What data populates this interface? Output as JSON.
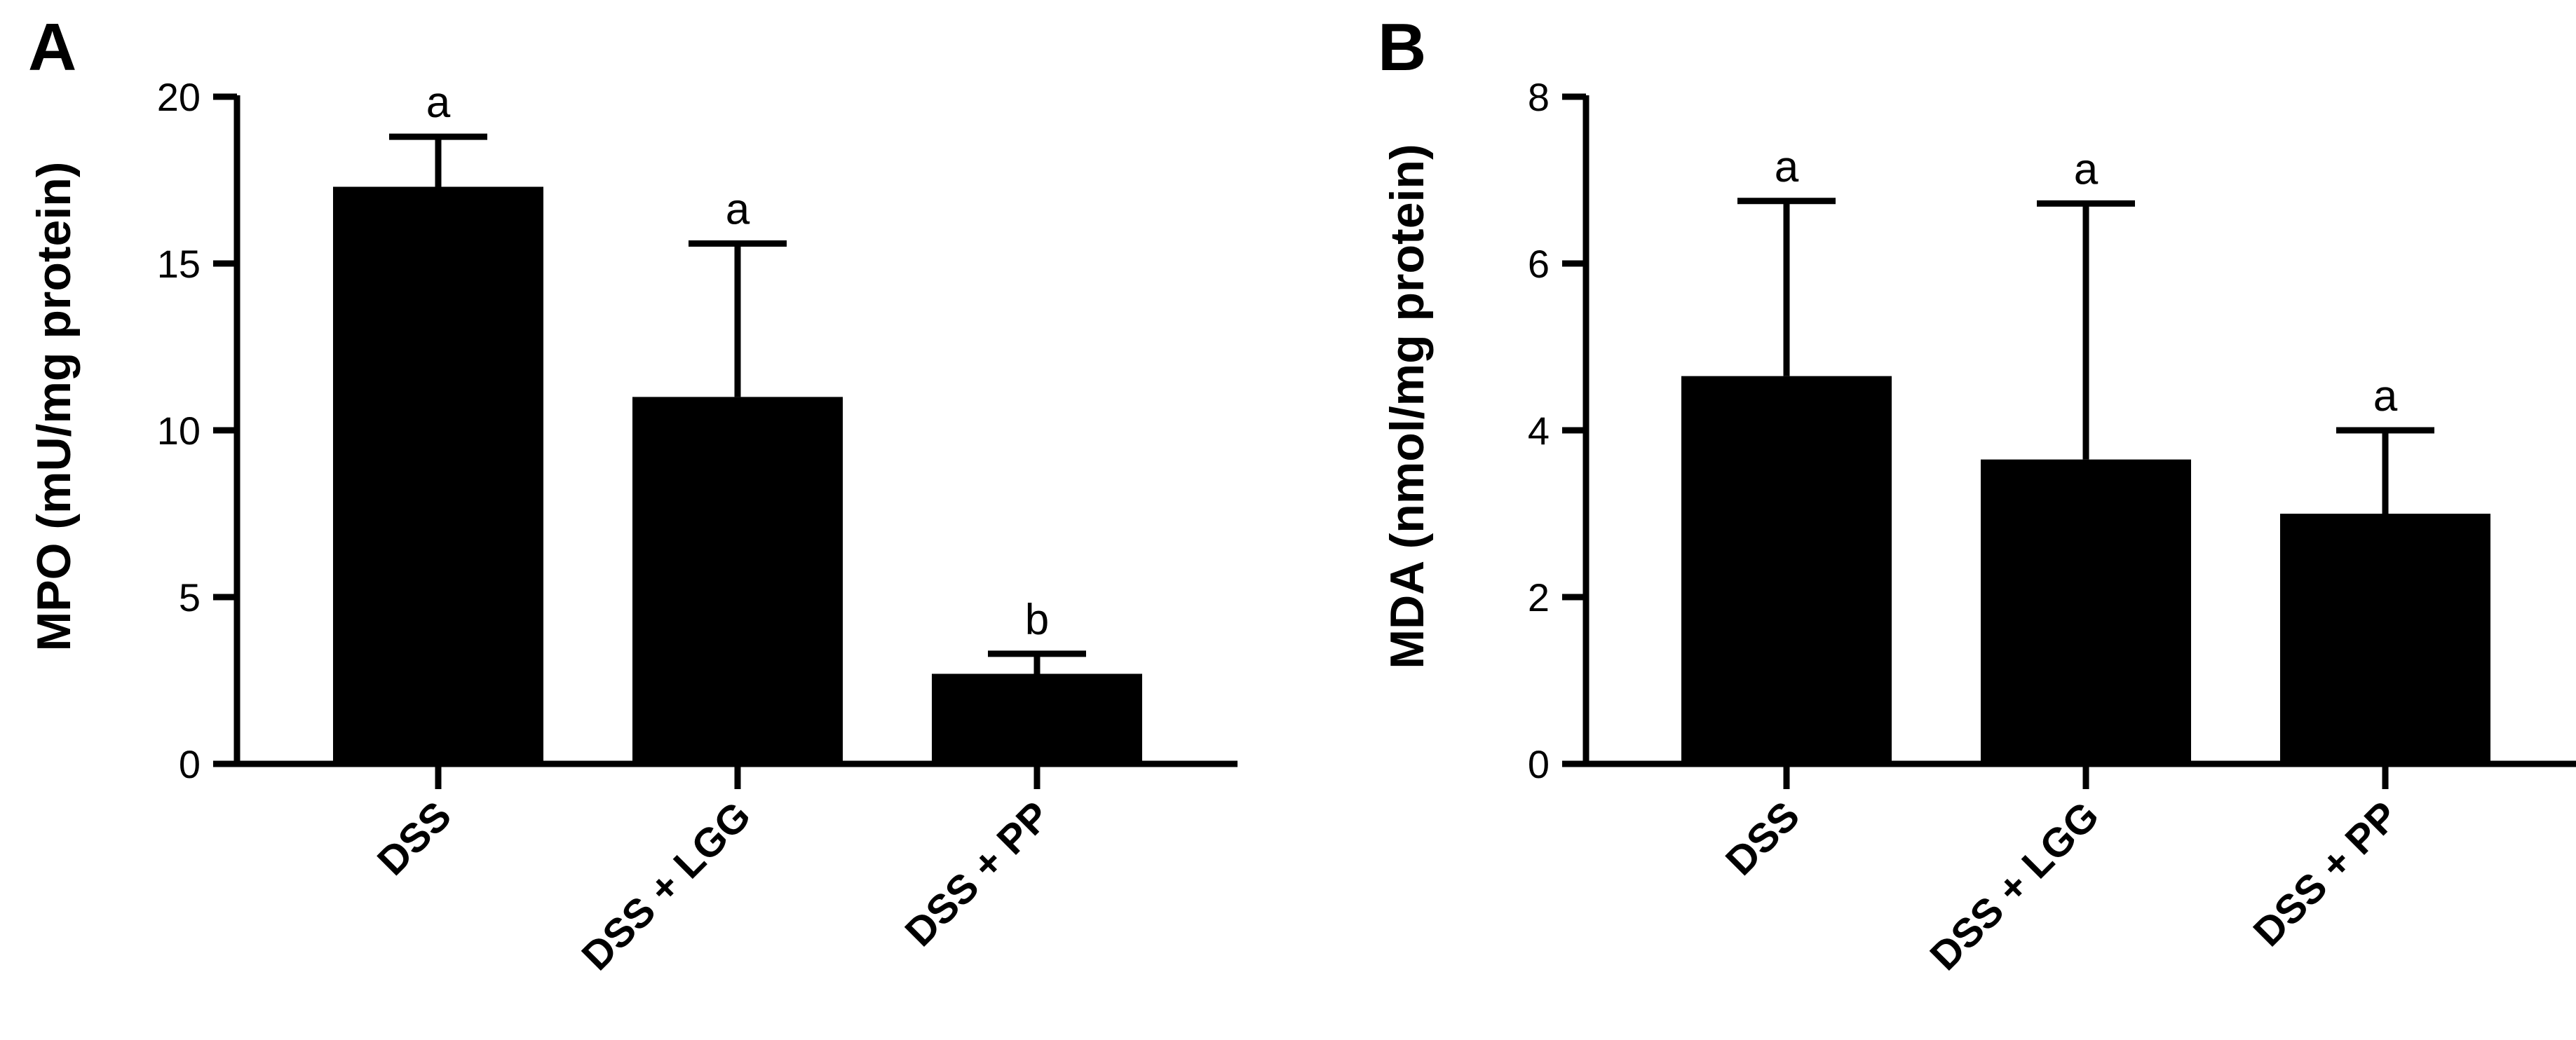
{
  "figure": {
    "background": "#ffffff",
    "bar_color": "#000000"
  },
  "chart_data": [
    {
      "type": "bar",
      "panel_label": "A",
      "title": "",
      "xlabel": "",
      "ylabel": "MPO (mU/mg protein)",
      "ylim": [
        0,
        20
      ],
      "yticks": [
        0,
        5,
        10,
        15,
        20
      ],
      "categories": [
        "DSS",
        "DSS + LGG",
        "DSS + PP"
      ],
      "values": [
        17.3,
        11.0,
        2.7
      ],
      "error_upper": [
        18.8,
        15.6,
        3.3
      ],
      "significance": [
        "a",
        "a",
        "b"
      ],
      "grid": false,
      "legend": "none"
    },
    {
      "type": "bar",
      "panel_label": "B",
      "title": "",
      "xlabel": "",
      "ylabel": "MDA (nmol/mg protein)",
      "ylim": [
        0,
        8
      ],
      "yticks": [
        0,
        2,
        4,
        6,
        8
      ],
      "categories": [
        "DSS",
        "DSS + LGG",
        "DSS + PP"
      ],
      "values": [
        4.65,
        3.65,
        3.0
      ],
      "error_upper": [
        6.75,
        6.72,
        4.0
      ],
      "significance": [
        "a",
        "a",
        "a"
      ],
      "grid": false,
      "legend": "none"
    }
  ]
}
